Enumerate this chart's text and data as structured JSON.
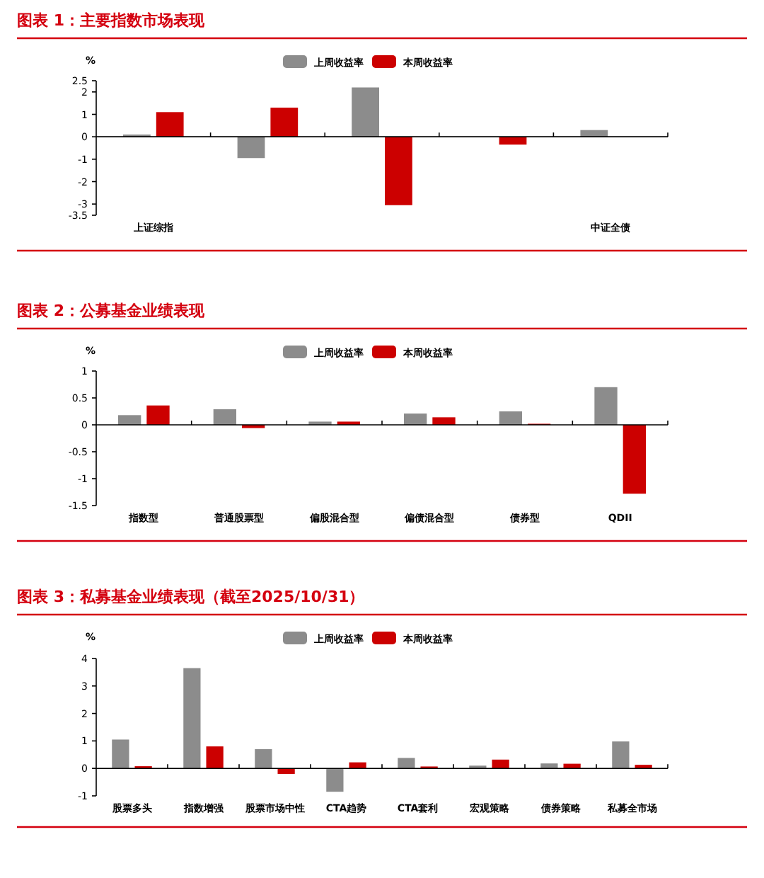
{
  "chart_data": [
    {
      "type": "bar",
      "title": "图表 1：主要指数市场表现",
      "ylabel": "%",
      "categories": [
        "上证综指",
        null,
        null,
        null,
        "中证全债"
      ],
      "series": [
        {
          "name": "上周收益率",
          "color": "#8c8c8c",
          "values": [
            0.1,
            -0.95,
            2.2,
            null,
            0.3
          ]
        },
        {
          "name": "本周收益率",
          "color": "#cc0000",
          "values": [
            1.1,
            1.3,
            -3.05,
            -0.35,
            null
          ]
        }
      ],
      "ylim": [
        -3.5,
        2.5
      ],
      "yticks": [
        -3.5,
        -3,
        -2,
        -1,
        0,
        1,
        2,
        2.5
      ],
      "legend": "top"
    },
    {
      "type": "bar",
      "title": "图表 2：公募基金业绩表现",
      "ylabel": "%",
      "categories": [
        "指数型",
        "普通股票型",
        "偏股混合型",
        "偏债混合型",
        "债券型",
        "QDII"
      ],
      "series": [
        {
          "name": "上周收益率",
          "color": "#8c8c8c",
          "values": [
            0.18,
            0.29,
            0.06,
            0.21,
            0.25,
            0.7
          ]
        },
        {
          "name": "本周收益率",
          "color": "#cc0000",
          "values": [
            0.36,
            -0.06,
            0.06,
            0.14,
            0.02,
            -1.28
          ]
        }
      ],
      "ylim": [
        -1.5,
        1
      ],
      "yticks": [
        -1.5,
        -1,
        -0.5,
        0,
        0.5,
        1
      ],
      "legend": "top"
    },
    {
      "type": "bar",
      "title": "图表 3：私募基金业绩表现（截至2025/10/31）",
      "ylabel": "%",
      "categories": [
        "股票多头",
        "指数增强",
        "股票市场中性",
        "CTA趋势",
        "CTA套利",
        "宏观策略",
        "债券策略",
        "私募全市场"
      ],
      "series": [
        {
          "name": "上周收益率",
          "color": "#8c8c8c",
          "values": [
            1.05,
            3.65,
            0.7,
            -0.85,
            0.38,
            0.1,
            0.18,
            0.98
          ]
        },
        {
          "name": "本周收益率",
          "color": "#cc0000",
          "values": [
            0.08,
            0.8,
            -0.2,
            0.22,
            0.07,
            0.32,
            0.17,
            0.13
          ]
        }
      ],
      "ylim": [
        -1,
        4
      ],
      "yticks": [
        -1,
        0,
        1,
        2,
        3,
        4
      ],
      "legend": "top"
    }
  ]
}
